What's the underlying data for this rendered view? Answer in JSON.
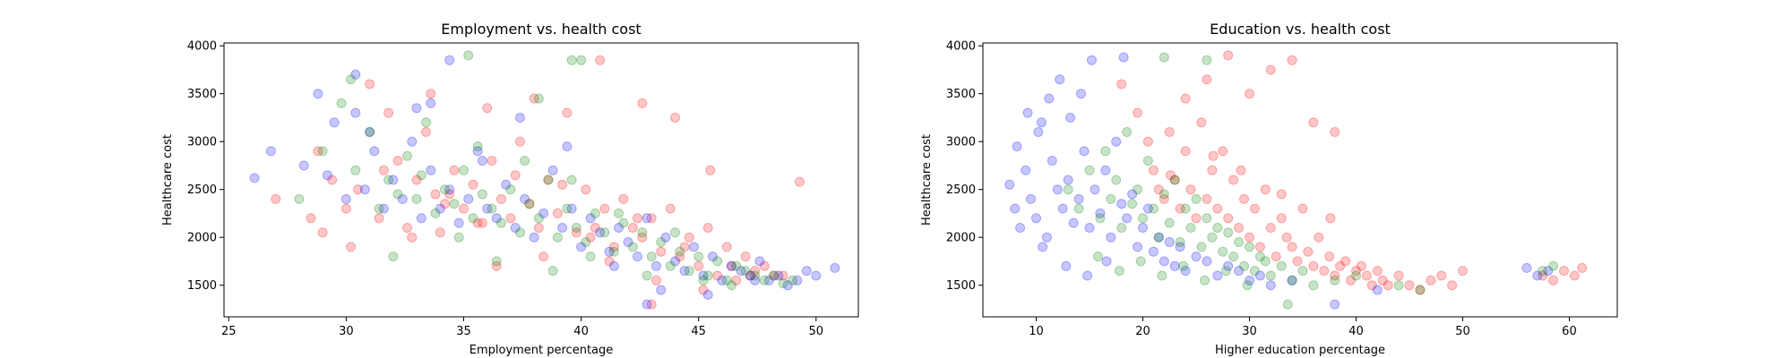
{
  "chart_data": [
    {
      "type": "scatter",
      "title": "Employment vs. health cost",
      "xlabel": "Employment percentage",
      "ylabel": "Healthcare cost",
      "xlim": [
        24.8,
        51.8
      ],
      "ylim": [
        1170,
        4030
      ],
      "xticks": [
        25,
        30,
        35,
        40,
        45,
        50
      ],
      "yticks": [
        1500,
        2000,
        2500,
        3000,
        3500,
        4000
      ],
      "grid": false,
      "legend": "none",
      "marker": "circle",
      "alpha": 0.22,
      "series": [
        {
          "color": "#ff0000",
          "x": [
            27.0,
            28.5,
            28.8,
            29.4,
            30.0,
            30.5,
            31.0,
            31.4,
            31.8,
            32.2,
            32.6,
            33.0,
            33.4,
            33.8,
            34.2,
            34.6,
            35.0,
            35.4,
            35.8,
            36.2,
            36.6,
            37.0,
            37.4,
            37.8,
            38.2,
            38.6,
            39.0,
            39.4,
            39.8,
            40.2,
            40.6,
            41.0,
            41.4,
            41.8,
            42.2,
            42.6,
            43.0,
            43.4,
            43.8,
            44.2,
            44.6,
            45.0,
            45.4,
            45.8,
            46.2,
            46.6,
            47.0,
            47.4,
            47.8,
            48.2,
            48.6,
            49.3,
            29.0,
            30.2,
            31.6,
            32.8,
            33.6,
            34.4,
            35.6,
            36.4,
            37.2,
            38.4,
            39.2,
            40.4,
            41.2,
            42.4,
            43.2,
            44.4,
            45.2,
            46.4,
            47.2,
            36.0,
            40.8,
            43.0,
            44.0,
            45.5,
            42.6,
            38.0,
            34.0
          ],
          "y": [
            2400,
            2200,
            2900,
            2600,
            2300,
            2500,
            3600,
            2200,
            3300,
            2800,
            2100,
            2600,
            3100,
            2450,
            2350,
            2700,
            2300,
            2550,
            2150,
            2800,
            2400,
            2200,
            3000,
            2350,
            2100,
            2600,
            2250,
            3300,
            2050,
            2500,
            2100,
            2300,
            1900,
            2400,
            2100,
            2000,
            2200,
            1850,
            2300,
            1800,
            2000,
            1700,
            2100,
            1600,
            1900,
            1550,
            1800,
            1650,
            1700,
            1600,
            1600,
            2580,
            2050,
            1900,
            2700,
            2000,
            3500,
            2450,
            2150,
            1700,
            2650,
            1800,
            2550,
            2000,
            1750,
            2200,
            1550,
            1900,
            1450,
            1700,
            1600,
            3350,
            3850,
            1300,
            3250,
            2700,
            3400,
            3450,
            2050
          ]
        },
        {
          "color": "#0000ff",
          "x": [
            26.1,
            26.8,
            28.2,
            28.8,
            29.5,
            30.0,
            30.4,
            30.8,
            31.2,
            31.6,
            32.0,
            32.4,
            32.8,
            33.2,
            33.6,
            34.0,
            34.4,
            34.8,
            35.2,
            35.6,
            36.0,
            36.4,
            36.8,
            37.2,
            37.6,
            38.0,
            38.4,
            38.8,
            39.2,
            39.6,
            40.0,
            40.4,
            40.8,
            41.2,
            41.6,
            42.0,
            42.4,
            42.8,
            43.2,
            43.6,
            44.0,
            44.4,
            44.8,
            45.2,
            45.6,
            46.0,
            46.4,
            46.8,
            47.2,
            47.6,
            48.0,
            48.4,
            48.8,
            49.2,
            49.6,
            50.0,
            50.8,
            29.2,
            31.0,
            33.0,
            34.4,
            35.8,
            37.4,
            39.4,
            41.4,
            43.4,
            45.4,
            47.4,
            33.6,
            30.4,
            42.8
          ],
          "y": [
            2620,
            2900,
            2750,
            3500,
            3200,
            2400,
            3300,
            2500,
            2900,
            2300,
            2600,
            2400,
            3000,
            2200,
            2700,
            2300,
            2500,
            2150,
            2400,
            2900,
            2300,
            2200,
            2550,
            2100,
            2400,
            2000,
            2250,
            2700,
            2100,
            2300,
            1900,
            2200,
            2050,
            1850,
            2100,
            1950,
            1800,
            2200,
            1700,
            2000,
            1750,
            1650,
            1900,
            1600,
            1800,
            1550,
            1700,
            1650,
            1600,
            1750,
            1550,
            1600,
            1500,
            1550,
            1650,
            1600,
            1680,
            2650,
            3100,
            3350,
            3850,
            2800,
            3250,
            2950,
            1700,
            1450,
            1400,
            1550,
            3400,
            3700,
            1300
          ],
          "dummy": []
        },
        {
          "color": "#008000",
          "x": [
            28.0,
            29.0,
            29.8,
            30.4,
            31.0,
            31.4,
            31.8,
            32.2,
            32.6,
            33.0,
            33.4,
            33.8,
            34.2,
            34.6,
            35.0,
            35.4,
            35.8,
            36.2,
            36.6,
            37.0,
            37.4,
            37.8,
            38.2,
            38.6,
            39.0,
            39.4,
            39.8,
            40.2,
            40.6,
            41.0,
            41.4,
            41.8,
            42.2,
            42.6,
            43.0,
            43.4,
            43.8,
            44.2,
            44.6,
            45.0,
            45.4,
            45.8,
            46.2,
            46.6,
            47.0,
            47.4,
            47.8,
            48.2,
            48.6,
            49.0,
            30.2,
            32.0,
            33.2,
            34.8,
            35.6,
            36.4,
            37.6,
            38.8,
            39.6,
            40.4,
            41.6,
            42.8,
            44.0,
            45.2,
            46.4,
            35.2,
            38.2,
            39.6,
            40.0
          ],
          "y": [
            2400,
            2900,
            3400,
            2700,
            3100,
            2300,
            2600,
            2450,
            2850,
            2400,
            3200,
            2250,
            2500,
            2350,
            2700,
            2200,
            2450,
            2300,
            2150,
            2500,
            2050,
            2350,
            2200,
            2600,
            2000,
            2300,
            2100,
            1950,
            2250,
            2050,
            1850,
            2150,
            1900,
            2050,
            1800,
            1950,
            1700,
            1850,
            1650,
            1800,
            1600,
            1750,
            1550,
            1700,
            1650,
            1600,
            1550,
            1600,
            1520,
            1550,
            3650,
            1800,
            2650,
            2000,
            2950,
            1750,
            2800,
            1650,
            2600,
            1800,
            2250,
            1600,
            2050,
            1550,
            1500,
            3900,
            3450,
            3850,
            3850
          ]
        }
      ]
    },
    {
      "type": "scatter",
      "title": "Education vs. health cost",
      "xlabel": "Higher education percentage",
      "ylabel": "Healthcare cost",
      "xlim": [
        5.0,
        64.5
      ],
      "ylim": [
        1170,
        4030
      ],
      "xticks": [
        10,
        20,
        30,
        40,
        50,
        60
      ],
      "yticks": [
        1500,
        2000,
        2500,
        3000,
        3500,
        4000
      ],
      "grid": false,
      "legend": "none",
      "marker": "circle",
      "alpha": 0.22,
      "series": [
        {
          "color": "#ff0000",
          "x": [
            18.0,
            19.5,
            20.5,
            21.0,
            21.5,
            22.0,
            22.5,
            23.0,
            23.5,
            24.0,
            24.5,
            25.0,
            25.5,
            26.0,
            26.5,
            27.0,
            27.5,
            28.0,
            28.5,
            29.0,
            29.5,
            30.0,
            30.5,
            31.0,
            31.5,
            32.0,
            32.5,
            33.0,
            33.5,
            34.0,
            34.5,
            35.0,
            35.5,
            36.0,
            36.5,
            37.0,
            37.5,
            38.0,
            38.5,
            39.0,
            39.5,
            40.0,
            40.5,
            41.0,
            41.5,
            42.0,
            42.5,
            43.0,
            44.0,
            45.0,
            46.0,
            47.0,
            48.0,
            49.0,
            50.0,
            57.5,
            58.5,
            59.5,
            60.5,
            61.2,
            24.0,
            26.0,
            28.0,
            30.0,
            32.0,
            34.0,
            36.0,
            38.0,
            22.6,
            26.6,
            29.2,
            33.0,
            37.6
          ],
          "y": [
            3600,
            3300,
            3000,
            2700,
            2500,
            2400,
            3100,
            2600,
            2300,
            2900,
            2500,
            2200,
            3200,
            2400,
            2700,
            2300,
            2900,
            2200,
            2600,
            2100,
            2400,
            2000,
            2300,
            1900,
            2500,
            2100,
            1800,
            2200,
            2000,
            1900,
            1750,
            2300,
            1850,
            1700,
            2000,
            1650,
            1800,
            1600,
            1700,
            1750,
            1550,
            1650,
            1700,
            1600,
            1500,
            1650,
            1550,
            1500,
            1600,
            1500,
            1450,
            1550,
            1600,
            1500,
            1650,
            1600,
            1550,
            1650,
            1600,
            1680,
            3450,
            3650,
            3900,
            3500,
            3750,
            3850,
            3200,
            3100,
            2650,
            2850,
            2700,
            2450,
            2200
          ]
        },
        {
          "color": "#0000ff",
          "x": [
            7.5,
            8.0,
            8.5,
            9.0,
            9.5,
            10.0,
            10.5,
            11.0,
            11.5,
            12.0,
            12.5,
            13.0,
            13.5,
            14.0,
            14.5,
            15.0,
            15.5,
            16.0,
            16.5,
            17.0,
            17.5,
            18.0,
            18.5,
            19.0,
            19.5,
            20.0,
            20.5,
            21.0,
            21.5,
            22.0,
            22.5,
            23.0,
            23.5,
            24.0,
            25.0,
            26.0,
            27.0,
            28.0,
            29.0,
            30.0,
            31.0,
            32.0,
            34.0,
            38.0,
            42.0,
            56.0,
            57.0,
            58.0,
            8.2,
            9.2,
            10.2,
            11.2,
            12.2,
            13.2,
            14.2,
            15.2,
            10.6,
            12.8,
            14.8,
            16.6,
            18.2
          ],
          "y": [
            2550,
            2300,
            2100,
            2700,
            2400,
            2200,
            3200,
            2000,
            2800,
            2500,
            2300,
            2600,
            2150,
            2400,
            2900,
            2100,
            2500,
            2250,
            2700,
            2000,
            3000,
            2350,
            2200,
            2450,
            1900,
            2100,
            2300,
            1850,
            2000,
            1750,
            1950,
            1700,
            1900,
            1650,
            1800,
            1750,
            1600,
            1700,
            1650,
            1550,
            1600,
            1500,
            1550,
            1300,
            1450,
            1680,
            1600,
            1650,
            2950,
            3300,
            3100,
            3450,
            3650,
            3250,
            3500,
            3850,
            1900,
            1700,
            1600,
            1750,
            3880
          ],
          "dummy": []
        },
        {
          "color": "#008000",
          "x": [
            13.0,
            14.0,
            15.0,
            16.0,
            16.5,
            17.0,
            17.5,
            18.0,
            18.5,
            19.0,
            19.5,
            20.0,
            20.5,
            21.0,
            21.5,
            22.0,
            22.5,
            23.0,
            23.5,
            24.0,
            24.5,
            25.0,
            25.5,
            26.0,
            26.5,
            27.0,
            27.5,
            28.0,
            28.5,
            29.0,
            29.5,
            30.0,
            30.5,
            31.0,
            31.5,
            32.0,
            33.0,
            34.0,
            35.0,
            36.0,
            38.0,
            40.0,
            44.0,
            46.0,
            57.5,
            58.5,
            15.8,
            17.8,
            19.8,
            21.8,
            23.8,
            25.8,
            27.8,
            29.8,
            22.0,
            26.0,
            33.6
          ],
          "y": [
            2500,
            2300,
            2700,
            2200,
            2900,
            2400,
            2600,
            2100,
            3100,
            2350,
            2500,
            2200,
            2800,
            2300,
            2000,
            2450,
            2150,
            2600,
            1950,
            2300,
            2100,
            2400,
            1900,
            2200,
            2000,
            2100,
            1850,
            2050,
            1800,
            1950,
            1700,
            1900,
            1650,
            1800,
            1750,
            1600,
            1700,
            1550,
            1650,
            1500,
            1550,
            1600,
            1500,
            1450,
            1650,
            1700,
            1800,
            1650,
            1750,
            1600,
            1700,
            1550,
            1650,
            1500,
            3880,
            3850,
            1300
          ]
        }
      ]
    }
  ]
}
